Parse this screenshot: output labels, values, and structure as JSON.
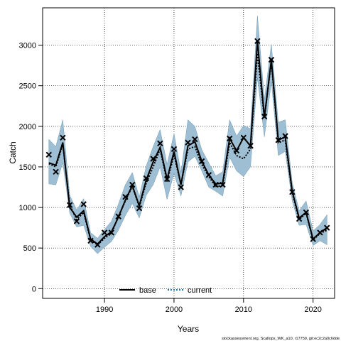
{
  "chart_data": {
    "type": "line",
    "title": "",
    "xlabel": "Years",
    "ylabel": "Catch",
    "xlim": [
      1981.1,
      2023.1
    ],
    "ylim": [
      -120,
      3460
    ],
    "grid": true,
    "legend_placement": "bottom",
    "x_ticks": [
      1990,
      2000,
      2010,
      2020
    ],
    "y_ticks": [
      0,
      500,
      1000,
      1500,
      2000,
      2500,
      3000
    ],
    "colors": {
      "band": "#9ebfd3",
      "band_edge": "#6d99b3",
      "line": "#000000",
      "legend_current": "#2a7ab0"
    },
    "years": [
      1982,
      1983,
      1984,
      1985,
      1986,
      1987,
      1988,
      1989,
      1990,
      1991,
      1992,
      1993,
      1994,
      1995,
      1996,
      1997,
      1998,
      1999,
      2000,
      2001,
      2002,
      2003,
      2004,
      2005,
      2006,
      2007,
      2008,
      2009,
      2010,
      2011,
      2012,
      2013,
      2014,
      2015,
      2016,
      2017,
      2018,
      2019,
      2020,
      2021,
      2022
    ],
    "series": [
      {
        "name": "base",
        "style": "solid",
        "values": [
          1550,
          1520,
          1800,
          1000,
          880,
          960,
          610,
          550,
          640,
          700,
          880,
          1090,
          1270,
          1020,
          1340,
          1560,
          1740,
          1350,
          1690,
          1280,
          1760,
          1810,
          1570,
          1400,
          1290,
          1300,
          1850,
          1700,
          1860,
          1760,
          3050,
          2110,
          2820,
          1830,
          1870,
          1200,
          870,
          940,
          610,
          690,
          750
        ]
      },
      {
        "name": "current",
        "style": "dotted",
        "values": [
          1540,
          1500,
          1780,
          1030,
          850,
          940,
          600,
          540,
          620,
          680,
          890,
          1080,
          1260,
          1010,
          1300,
          1500,
          1720,
          1320,
          1650,
          1280,
          1720,
          1750,
          1530,
          1380,
          1260,
          1270,
          1800,
          1640,
          1600,
          1720,
          2900,
          2100,
          2800,
          1800,
          1830,
          1180,
          850,
          930,
          600,
          680,
          720
        ]
      }
    ],
    "observed": {
      "name": "observed",
      "values": [
        1650,
        1440,
        1860,
        1030,
        830,
        1040,
        590,
        540,
        690,
        690,
        890,
        1130,
        1280,
        990,
        1360,
        1600,
        1790,
        1350,
        1720,
        1250,
        1800,
        1840,
        1570,
        1400,
        1280,
        1280,
        1850,
        1700,
        1860,
        1760,
        3050,
        2120,
        2820,
        1830,
        1880,
        1190,
        860,
        940,
        610,
        690,
        750
      ]
    },
    "band": {
      "lower": [
        1290,
        1280,
        1550,
        930,
        760,
        780,
        520,
        430,
        510,
        580,
        720,
        900,
        1050,
        870,
        1150,
        1280,
        1500,
        1100,
        1420,
        1140,
        1560,
        1630,
        1450,
        1250,
        1200,
        1140,
        1620,
        1450,
        1380,
        1500,
        2600,
        1870,
        2550,
        1640,
        1690,
        1080,
        780,
        790,
        530,
        590,
        540
      ],
      "upper": [
        1840,
        1750,
        2080,
        1150,
        970,
        1110,
        690,
        620,
        730,
        830,
        1040,
        1280,
        1430,
        1130,
        1510,
        1750,
        1960,
        1530,
        1910,
        1430,
        2080,
        2000,
        1710,
        1550,
        1390,
        1440,
        2080,
        1880,
        2010,
        1970,
        3360,
        2330,
        3010,
        2050,
        2080,
        1310,
        960,
        1080,
        710,
        790,
        910
      ]
    },
    "legend": [
      "base",
      "current"
    ],
    "footnote": "stockassessment.org, Scallops_WK_a10, r17759, git:ec2c2a0c6dde"
  }
}
